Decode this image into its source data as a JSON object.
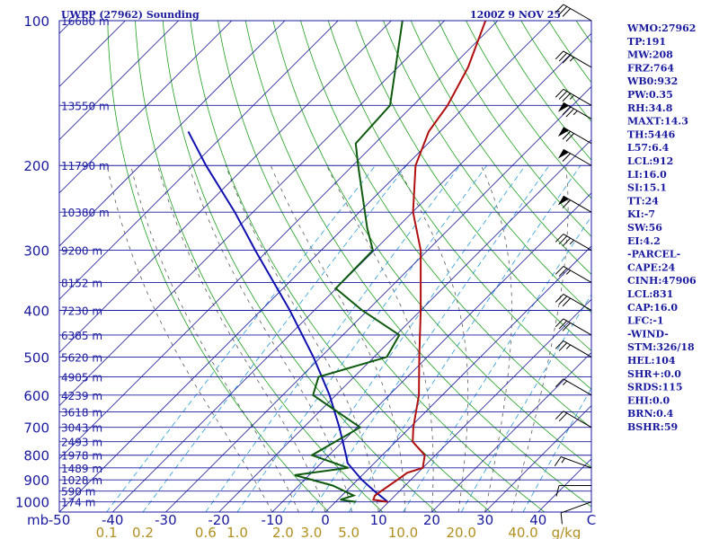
{
  "header": {
    "title": "UWPP (27962) Sounding",
    "time": "1200Z  9 NOV 25"
  },
  "chart_data": {
    "type": "skew-t",
    "pressure_axis": {
      "label": "mb",
      "ticks": [
        100,
        200,
        300,
        400,
        500,
        600,
        700,
        800,
        900,
        1000
      ],
      "range": [
        100,
        1050
      ],
      "scale": "log"
    },
    "temperature_axis": {
      "ticks": [
        -50,
        -40,
        -30,
        -20,
        -10,
        0,
        10,
        20,
        30,
        40
      ],
      "last_label": "C",
      "range_at_1050": [
        -50,
        50
      ]
    },
    "mixing_ratio_axis": {
      "label": "g/kg",
      "values": [
        0.1,
        0.2,
        0.6,
        1.0,
        2.0,
        3.0,
        5.0,
        10.0,
        20.0,
        40.0
      ],
      "labels": [
        "0.1",
        "0.2",
        "0.6",
        "1.0",
        "2.0",
        "3.0",
        "5.0",
        "10.0",
        "20.0",
        "40.0"
      ]
    },
    "height_labels": [
      {
        "p": 100,
        "text": "16680 m"
      },
      {
        "p": 150,
        "text": "13550 m"
      },
      {
        "p": 200,
        "text": "11790 m"
      },
      {
        "p": 250,
        "text": "10380 m"
      },
      {
        "p": 300,
        "text": "9200 m"
      },
      {
        "p": 350,
        "text": "8152 m"
      },
      {
        "p": 400,
        "text": "7230 m"
      },
      {
        "p": 450,
        "text": "6385 m"
      },
      {
        "p": 500,
        "text": "5620 m"
      },
      {
        "p": 550,
        "text": "4905 m"
      },
      {
        "p": 600,
        "text": "4239 m"
      },
      {
        "p": 650,
        "text": "3618 m"
      },
      {
        "p": 700,
        "text": "3043 m"
      },
      {
        "p": 750,
        "text": "2493 m"
      },
      {
        "p": 800,
        "text": "1978 m"
      },
      {
        "p": 850,
        "text": "1489 m"
      },
      {
        "p": 900,
        "text": "1028 m"
      },
      {
        "p": 950,
        "text": "590 m"
      },
      {
        "p": 1000,
        "text": "174 m"
      }
    ],
    "temperature_profile": [
      {
        "p": 1000,
        "t": 9.8
      },
      {
        "p": 990,
        "t": 6.7
      },
      {
        "p": 970,
        "t": 6.2
      },
      {
        "p": 925,
        "t": 7.0
      },
      {
        "p": 900,
        "t": 7.5
      },
      {
        "p": 870,
        "t": 8.0
      },
      {
        "p": 850,
        "t": 10.0
      },
      {
        "p": 800,
        "t": 8.0
      },
      {
        "p": 750,
        "t": 3.2
      },
      {
        "p": 700,
        "t": 0.6
      },
      {
        "p": 600,
        "t": -4.4
      },
      {
        "p": 500,
        "t": -11.5
      },
      {
        "p": 400,
        "t": -20.0
      },
      {
        "p": 300,
        "t": -31.3
      },
      {
        "p": 250,
        "t": -39.9
      },
      {
        "p": 200,
        "t": -48.2
      },
      {
        "p": 170,
        "t": -52.1
      },
      {
        "p": 150,
        "t": -53.5
      },
      {
        "p": 125,
        "t": -56.8
      },
      {
        "p": 100,
        "t": -62.3
      }
    ],
    "dewpoint_profile": [
      {
        "p": 1000,
        "td": 3.8
      },
      {
        "p": 990,
        "td": 0.5
      },
      {
        "p": 970,
        "td": 2.2
      },
      {
        "p": 925,
        "td": -3.6
      },
      {
        "p": 880,
        "td": -12.7
      },
      {
        "p": 850,
        "td": -4.0
      },
      {
        "p": 800,
        "td": -13.2
      },
      {
        "p": 700,
        "td": -9.4
      },
      {
        "p": 600,
        "td": -24.3
      },
      {
        "p": 550,
        "td": -26.7
      },
      {
        "p": 500,
        "td": -17.6
      },
      {
        "p": 450,
        "td": -19.4
      },
      {
        "p": 400,
        "td": -31.0
      },
      {
        "p": 360,
        "td": -40.1
      },
      {
        "p": 300,
        "td": -40.3
      },
      {
        "p": 270,
        "td": -45.5
      },
      {
        "p": 200,
        "td": -59.0
      },
      {
        "p": 180,
        "td": -63.6
      },
      {
        "p": 150,
        "td": -64.3
      },
      {
        "p": 100,
        "td": -77.9
      }
    ],
    "parcel_profile": [
      {
        "p": 1000,
        "t": 9.8
      },
      {
        "p": 950,
        "t": 5.3
      },
      {
        "p": 900,
        "t": 0.8
      },
      {
        "p": 831,
        "t": -5.0
      },
      {
        "p": 800,
        "t": -6.8
      },
      {
        "p": 700,
        "t": -13.3
      },
      {
        "p": 600,
        "t": -21.2
      },
      {
        "p": 500,
        "t": -31.4
      },
      {
        "p": 400,
        "t": -44.6
      },
      {
        "p": 300,
        "t": -62.4
      },
      {
        "p": 250,
        "t": -73.4
      },
      {
        "p": 200,
        "t": -87.6
      },
      {
        "p": 170,
        "t": -97.3
      }
    ],
    "wind_barbs": [
      {
        "p": 1000,
        "dir": 250,
        "kt": 10
      },
      {
        "p": 925,
        "dir": 270,
        "kt": 10
      },
      {
        "p": 850,
        "dir": 290,
        "kt": 15
      },
      {
        "p": 700,
        "dir": 300,
        "kt": 20
      },
      {
        "p": 600,
        "dir": 300,
        "kt": 15
      },
      {
        "p": 500,
        "dir": 300,
        "kt": 25
      },
      {
        "p": 450,
        "dir": 300,
        "kt": 30
      },
      {
        "p": 400,
        "dir": 300,
        "kt": 30
      },
      {
        "p": 350,
        "dir": 300,
        "kt": 25
      },
      {
        "p": 300,
        "dir": 300,
        "kt": 35
      },
      {
        "p": 250,
        "dir": 300,
        "kt": 60
      },
      {
        "p": 200,
        "dir": 300,
        "kt": 60
      },
      {
        "p": 180,
        "dir": 300,
        "kt": 70
      },
      {
        "p": 160,
        "dir": 300,
        "kt": 75
      },
      {
        "p": 150,
        "dir": 300,
        "kt": 35
      },
      {
        "p": 125,
        "dir": 300,
        "kt": 35
      },
      {
        "p": 100,
        "dir": 300,
        "kt": 30
      }
    ],
    "grid": {
      "isotherm_step": 10,
      "dry_adiabat_thetas_k": [
        270,
        280,
        290,
        300,
        310,
        320,
        330,
        340,
        350,
        360,
        370,
        380,
        390,
        400,
        410,
        420,
        430,
        440,
        450,
        460,
        470
      ],
      "moist_adiabat_start_c": [
        -10,
        -5,
        0,
        5,
        10,
        15,
        20,
        25,
        30,
        35
      ],
      "mixing_ratio_lines_gkg": [
        0.1,
        0.2,
        0.6,
        1.0,
        2.0,
        3.0,
        5.0,
        10.0,
        20.0,
        40.0
      ]
    },
    "colors": {
      "temperature": "#b01010",
      "dewpoint": "#0e5a0e",
      "parcel": "#1010b0",
      "isobar": "#1a1aa0",
      "isotherm": "#1a1aa0",
      "dry_adiabat": "#1fa01f",
      "moist_adiabat": "#5a5a5a",
      "mixing_ratio": "#2a9ad6",
      "labels": "#1a1aa0",
      "mixing_ratio_labels": "#b09020"
    }
  },
  "indices": [
    "WMO:27962",
    "TP:191",
    "MW:208",
    "FRZ:764",
    "WB0:932",
    "PW:0.35",
    "RH:34.8",
    "MAXT:14.3",
    "TH:5446",
    "L57:6.4",
    "LCL:912",
    "LI:16.0",
    "SI:15.1",
    "TT:24",
    "KI:-7",
    "SW:56",
    "EI:4.2",
    "-PARCEL-",
    "CAPE:24",
    "CINH:47906",
    "LCL:831",
    "CAP:16.0",
    "LFC:-1",
    "-WIND-",
    "STM:326/18",
    "HEL:104",
    "SHR+:0.0",
    "SRDS:115",
    "EHI:0.0",
    "BRN:0.4",
    "BSHR:59"
  ]
}
